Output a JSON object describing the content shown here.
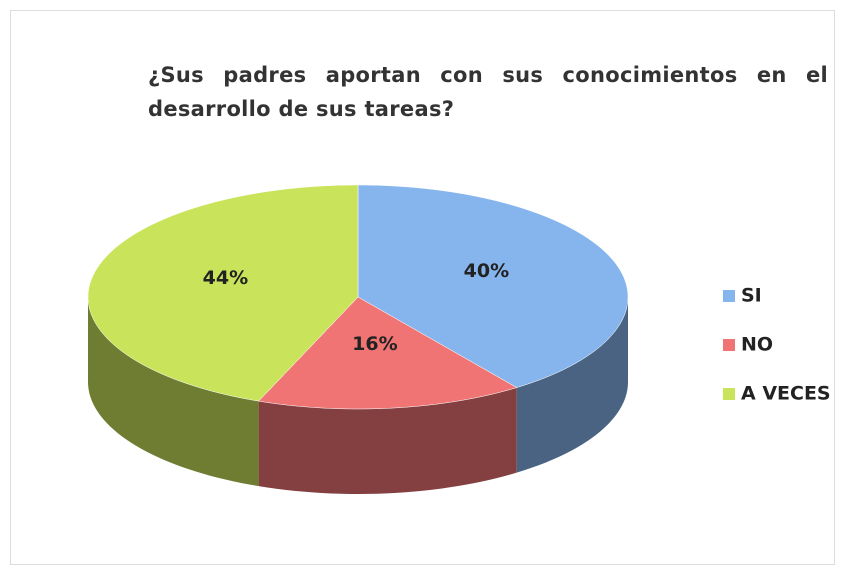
{
  "chart_data": {
    "type": "pie",
    "title": "¿Sus padres aportan con sus conocimientos en el desarrollo de sus tareas?",
    "categories": [
      "SI",
      "NO",
      "A VECES"
    ],
    "values": [
      40,
      16,
      44
    ],
    "value_labels": [
      "40%",
      "16%",
      "44%"
    ],
    "colors": [
      "#86b4ec",
      "#f07474",
      "#c9e35a"
    ],
    "legend": "right"
  }
}
